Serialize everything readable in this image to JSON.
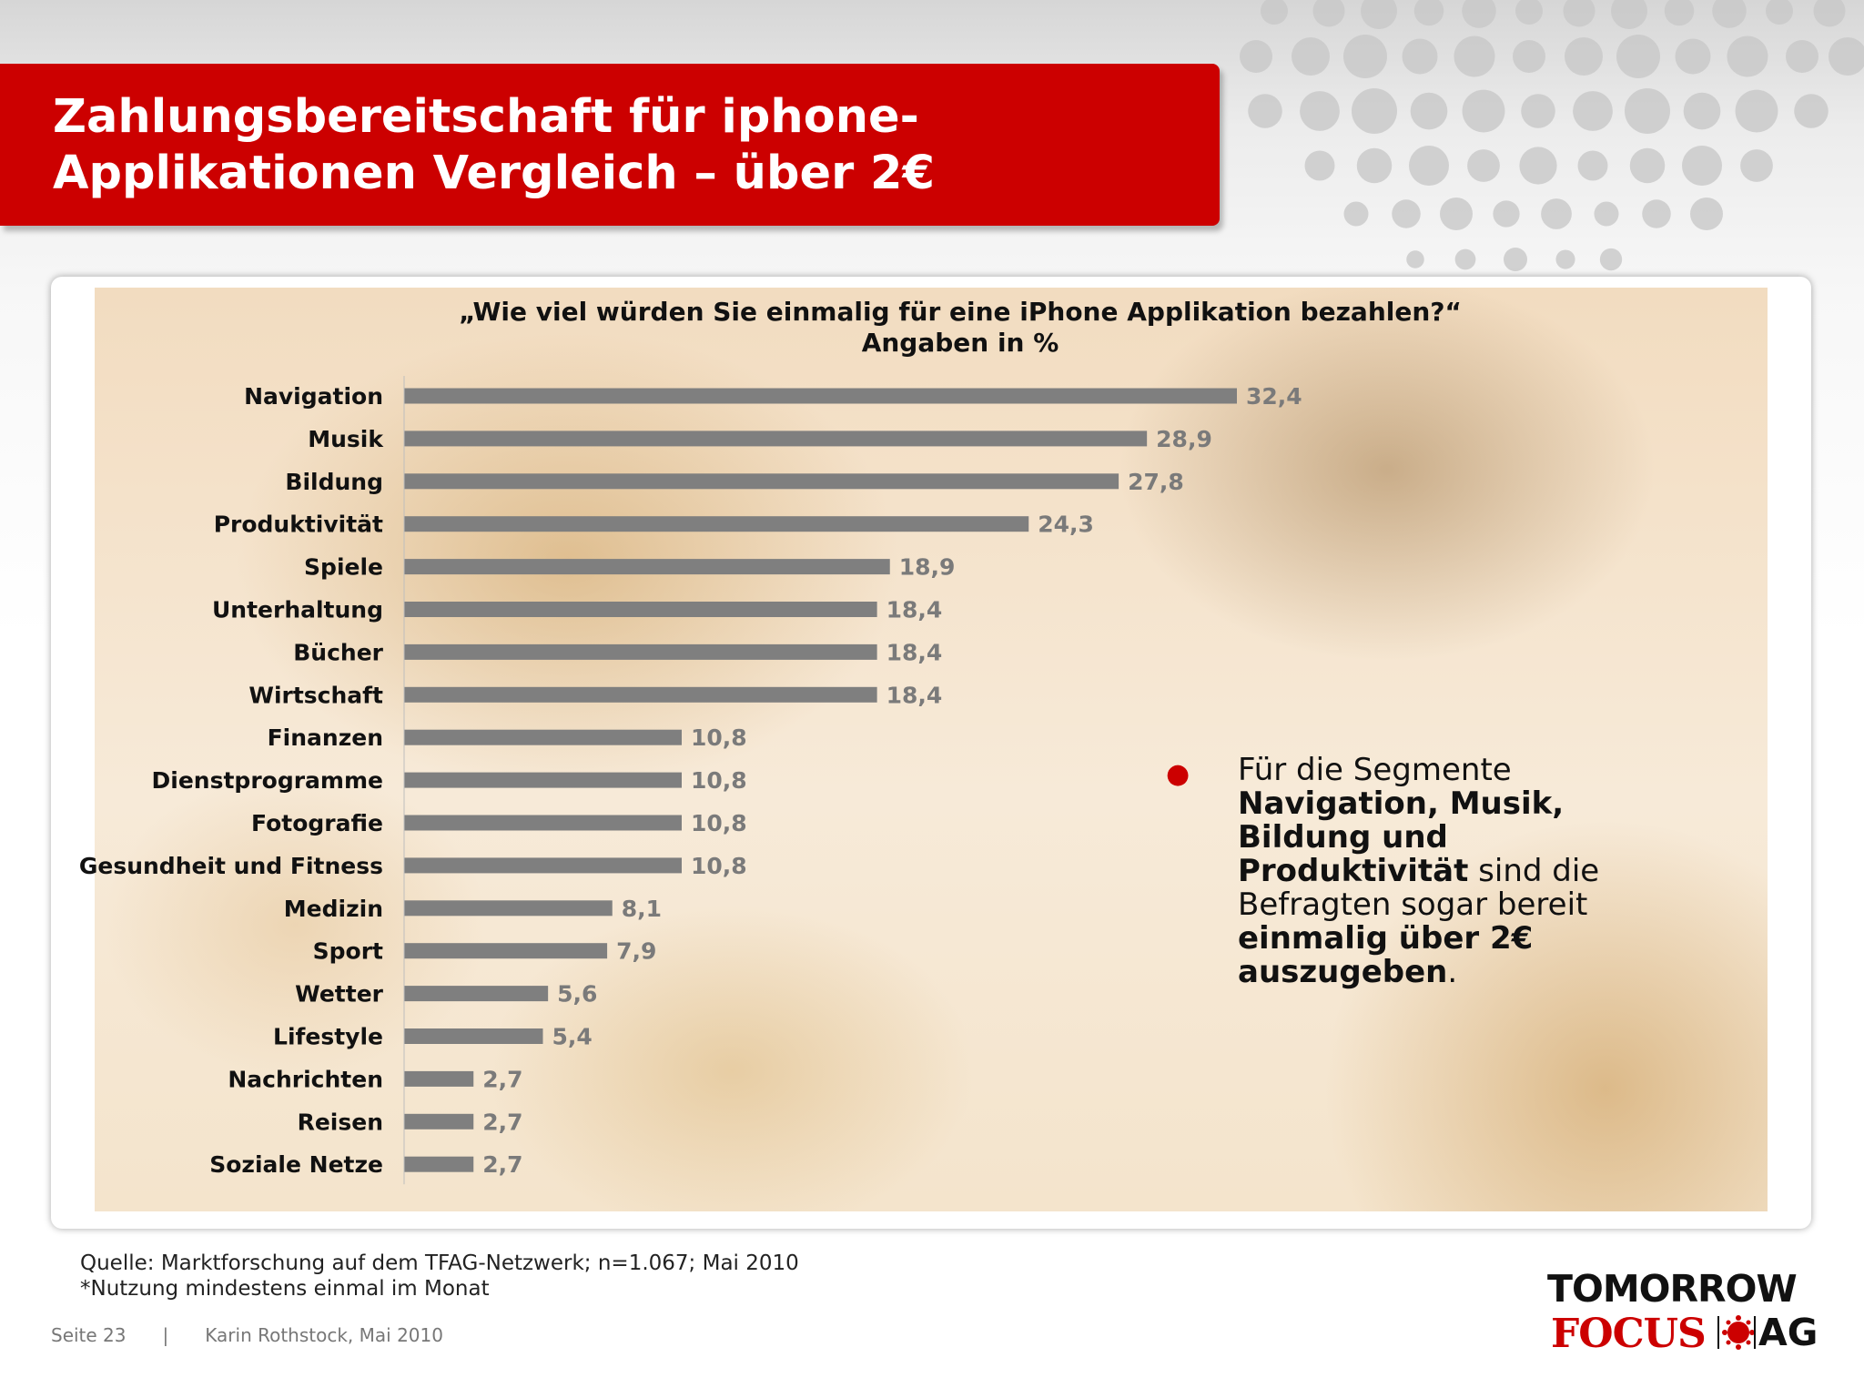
{
  "slide": {
    "title_line1": "Zahlungsbereitschaft für iphone-",
    "title_line2": "Applikationen Vergleich – über 2€",
    "accent_color": "#cc0000"
  },
  "chart_data": {
    "type": "bar",
    "orientation": "horizontal",
    "title": "„Wie viel würden Sie einmalig für eine iPhone Applikation bezahlen?“",
    "subtitle": "Angaben in %",
    "categories": [
      "Navigation",
      "Musik",
      "Bildung",
      "Produktivität",
      "Spiele",
      "Unterhaltung",
      "Bücher",
      "Wirtschaft",
      "Finanzen",
      "Dienstprogramme",
      "Fotografie",
      "Gesundheit und Fitness",
      "Medizin",
      "Sport",
      "Wetter",
      "Lifestyle",
      "Nachrichten",
      "Reisen",
      "Soziale Netze"
    ],
    "values": [
      32.4,
      28.9,
      27.8,
      24.3,
      18.9,
      18.4,
      18.4,
      18.4,
      10.8,
      10.8,
      10.8,
      10.8,
      8.1,
      7.9,
      5.6,
      5.4,
      2.7,
      2.7,
      2.7
    ],
    "value_labels": [
      "32,4",
      "28,9",
      "27,8",
      "24,3",
      "18,9",
      "18,4",
      "18,4",
      "18,4",
      "10,8",
      "10,8",
      "10,8",
      "10,8",
      "8,1",
      "7,9",
      "5,6",
      "5,4",
      "2,7",
      "2,7",
      "2,7"
    ],
    "xlim": [
      0,
      32.4
    ],
    "bar_color": "#7f7f7f",
    "grid": false,
    "legend": "none"
  },
  "note": {
    "text1": "Für die Segmente ",
    "bold1": "Navigation, Musik, Bildung und Produktivität",
    "text2": " sind die Befragten sogar bereit ",
    "bold2": "einmalig über 2€ auszugeben",
    "text3": "."
  },
  "source": {
    "line1": "Quelle: Marktforschung auf dem TFAG-Netzwerk; n=1.067; Mai 2010",
    "line2": "*Nutzung mindestens einmal im Monat"
  },
  "footer": {
    "page": "Seite 23",
    "separator": "|",
    "author": "Karin Rothstock, Mai 2010"
  },
  "logo": {
    "top": "TOMORROW",
    "focus": "FOCUS",
    "ag": "AG"
  }
}
